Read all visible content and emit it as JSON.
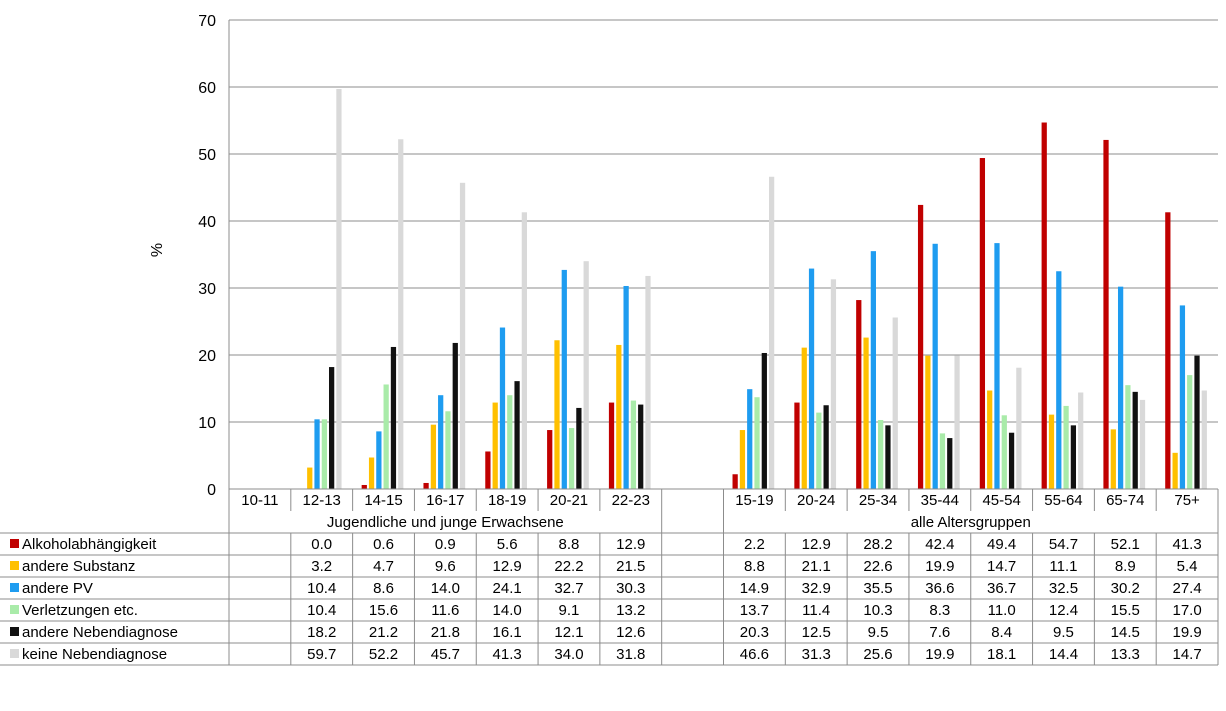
{
  "chart_data": {
    "type": "bar",
    "title": "",
    "xlabel": "",
    "ylabel": "%",
    "ylim": [
      0,
      70
    ],
    "yticks": [
      0,
      10,
      20,
      30,
      40,
      50,
      60,
      70
    ],
    "grid": true,
    "legend": "table-left",
    "groups": [
      {
        "label": "Jugendliche und junge Erwachsene",
        "categories": [
          "10-11",
          "12-13",
          "14-15",
          "16-17",
          "18-19",
          "20-21",
          "22-23"
        ]
      },
      {
        "label": "alle Altersgruppen",
        "categories": [
          "15-19",
          "20-24",
          "25-34",
          "35-44",
          "45-54",
          "55-64",
          "65-74",
          "75+"
        ]
      }
    ],
    "series": [
      {
        "name": "Alkoholabhängigkeit",
        "color": "#c00000",
        "values": [
          null,
          0.0,
          0.6,
          0.9,
          5.6,
          8.8,
          12.9,
          2.2,
          12.9,
          28.2,
          42.4,
          49.4,
          54.7,
          52.1,
          41.3
        ]
      },
      {
        "name": "andere Substanz",
        "color": "#ffc000",
        "values": [
          null,
          3.2,
          4.7,
          9.6,
          12.9,
          22.2,
          21.5,
          8.8,
          21.1,
          22.6,
          19.9,
          14.7,
          11.1,
          8.9,
          5.4
        ]
      },
      {
        "name": "andere PV",
        "color": "#1e9cf0",
        "values": [
          null,
          10.4,
          8.6,
          14.0,
          24.1,
          32.7,
          30.3,
          14.9,
          32.9,
          35.5,
          36.6,
          36.7,
          32.5,
          30.2,
          27.4
        ]
      },
      {
        "name": "Verletzungen etc.",
        "color": "#a9eba9",
        "values": [
          null,
          10.4,
          15.6,
          11.6,
          14.0,
          9.1,
          13.2,
          13.7,
          11.4,
          10.3,
          8.3,
          11.0,
          12.4,
          15.5,
          17.0
        ]
      },
      {
        "name": "andere Nebendiagnose",
        "color": "#111111",
        "values": [
          null,
          18.2,
          21.2,
          21.8,
          16.1,
          12.1,
          12.6,
          20.3,
          12.5,
          9.5,
          7.6,
          8.4,
          9.5,
          14.5,
          19.9
        ]
      },
      {
        "name": "keine Nebendiagnose",
        "color": "#d9d9d9",
        "values": [
          null,
          59.7,
          52.2,
          45.7,
          41.3,
          34.0,
          31.8,
          46.6,
          31.3,
          25.6,
          19.9,
          18.1,
          14.4,
          13.3,
          14.7
        ]
      }
    ]
  }
}
